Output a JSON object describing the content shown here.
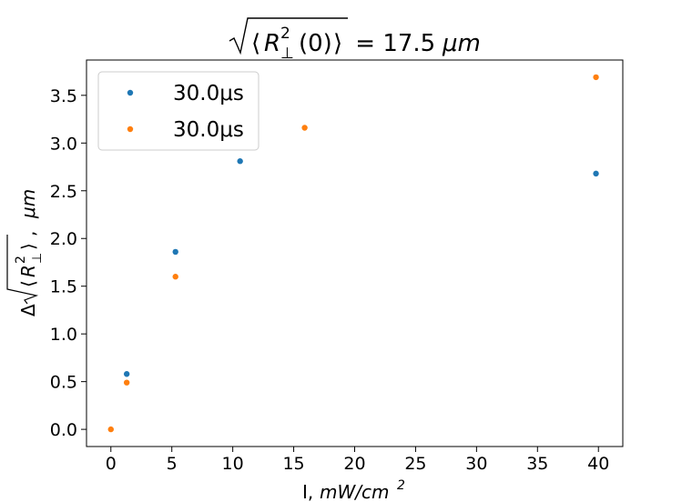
{
  "chart_data": {
    "type": "scatter",
    "title": {
      "main": "R",
      "sup": "2",
      "sub": "⊥",
      "arg": "(0)",
      "rest": " = 17.5 ",
      "unit": "μm"
    },
    "xlabel": {
      "main": "I, ",
      "unit": "mW/cm",
      "sup": "2"
    },
    "ylabel": {
      "delta": "Δ",
      "main": "R",
      "sup": "2",
      "sub": "⊥",
      "sep": ", ",
      "unit": "μm"
    },
    "xlim": [
      -2,
      42
    ],
    "ylim": [
      -0.18,
      3.87
    ],
    "xticks": [
      0,
      5,
      10,
      15,
      20,
      25,
      30,
      35,
      40
    ],
    "yticks": [
      0.0,
      0.5,
      1.0,
      1.5,
      2.0,
      2.5,
      3.0,
      3.5
    ],
    "xtick_labels": [
      "0",
      "5",
      "10",
      "15",
      "20",
      "25",
      "30",
      "35",
      "40"
    ],
    "ytick_labels": [
      "0.0",
      "0.5",
      "1.0",
      "1.5",
      "2.0",
      "2.5",
      "3.0",
      "3.5"
    ],
    "legend_position": "top-left",
    "series": [
      {
        "name": "30.0μs",
        "color": "#1f77b4",
        "points": [
          [
            1.3,
            0.58
          ],
          [
            5.3,
            1.86
          ],
          [
            10.6,
            2.81
          ],
          [
            39.8,
            2.68
          ]
        ]
      },
      {
        "name": "30.0μs",
        "color": "#ff7f0e",
        "points": [
          [
            0.0,
            0.0
          ],
          [
            1.3,
            0.49
          ],
          [
            5.3,
            1.6
          ],
          [
            15.9,
            3.16
          ],
          [
            39.8,
            3.69
          ]
        ]
      }
    ]
  }
}
